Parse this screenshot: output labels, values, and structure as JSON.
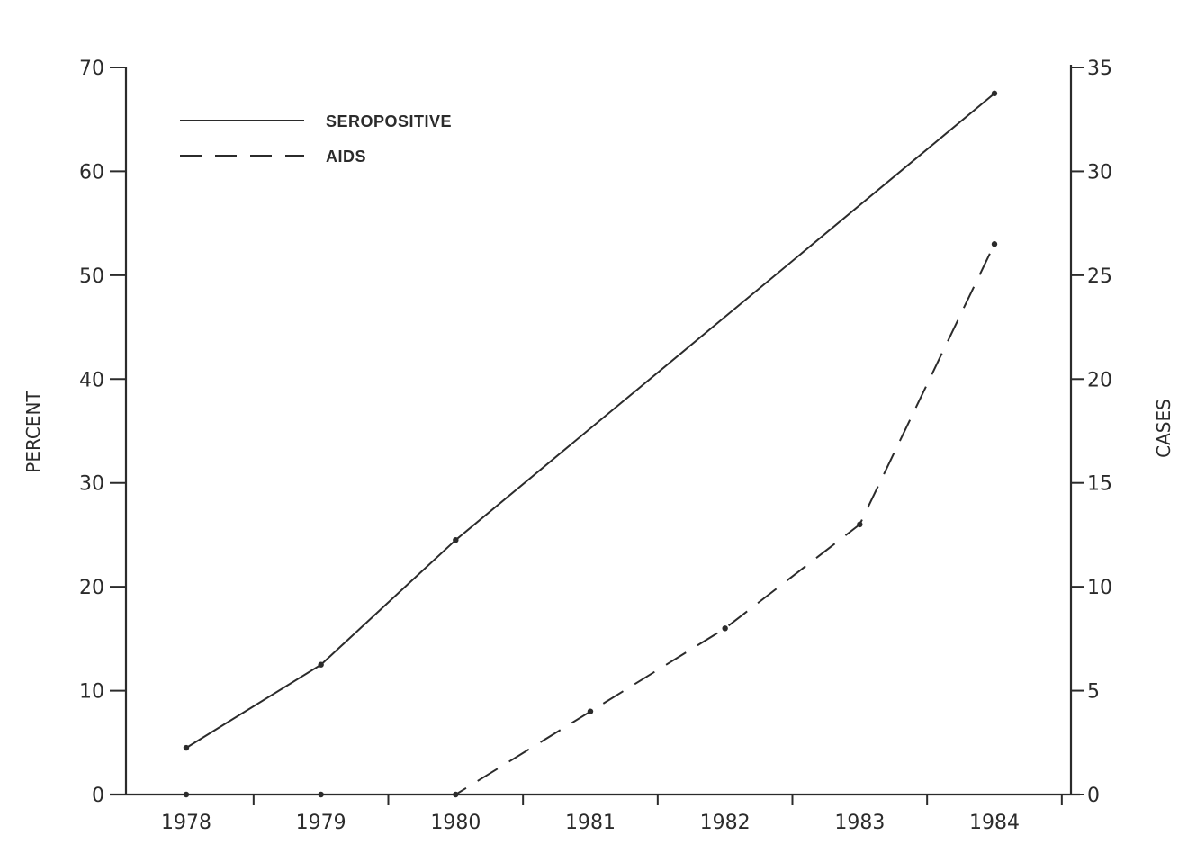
{
  "chart_data": {
    "type": "line",
    "x": [
      "1978",
      "1979",
      "1980",
      "1981",
      "1982",
      "1983",
      "1984"
    ],
    "xlabel": "",
    "y_left_label": "PERCENT",
    "y_left_range": [
      0,
      70
    ],
    "y_left_ticks": [
      "0",
      "10",
      "20",
      "30",
      "40",
      "50",
      "60",
      "70"
    ],
    "y_right_label": "CASES",
    "y_right_range": [
      0,
      35
    ],
    "y_right_ticks": [
      "0",
      "5",
      "10",
      "15",
      "20",
      "25",
      "30",
      "35"
    ],
    "grid": false,
    "legend_position": "top-left",
    "series": [
      {
        "name": "SEROPOSITIVE",
        "axis": "left",
        "line_style": "solid",
        "values": [
          4.5,
          12.5,
          24.5,
          null,
          null,
          null,
          67.5
        ]
      },
      {
        "name": "AIDS",
        "axis": "right",
        "line_style": "dashed",
        "values": [
          0,
          0,
          0,
          4,
          8,
          13,
          26.5
        ]
      }
    ]
  }
}
